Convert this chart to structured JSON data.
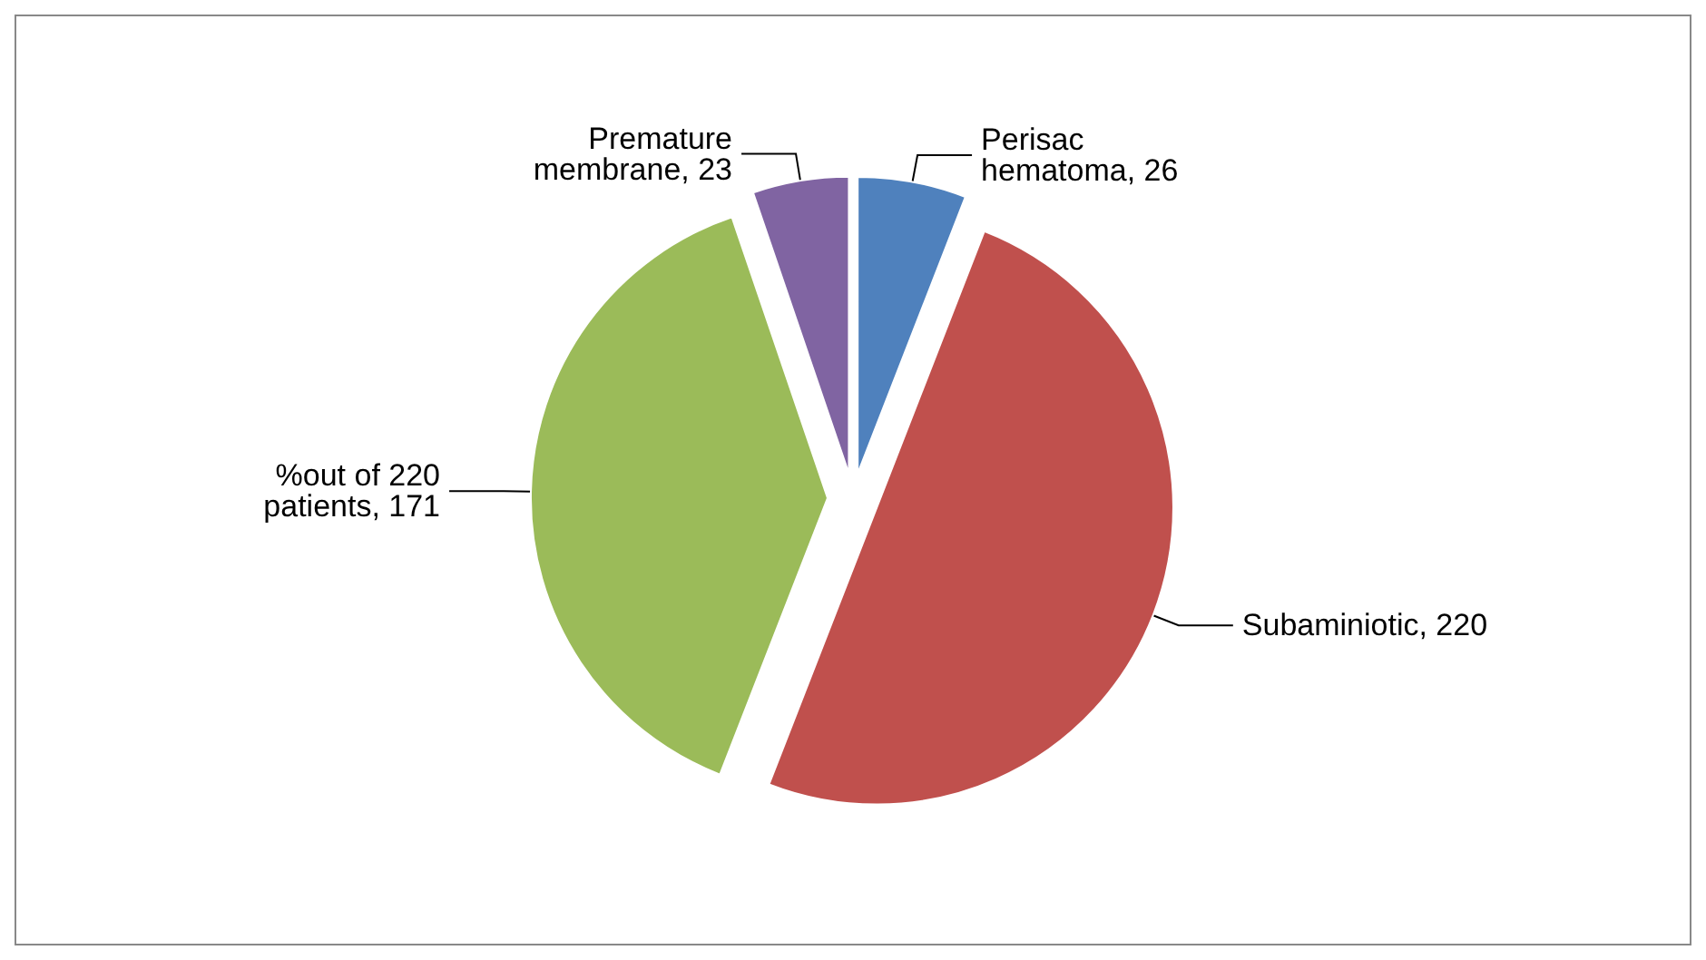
{
  "chart_data": {
    "type": "pie",
    "categories": [
      "Perisac hematoma",
      "Subaminiotic",
      "%out of 220 patients",
      "Premature membrane"
    ],
    "values": [
      26,
      220,
      171,
      23
    ],
    "value_labels": [
      "26",
      "220",
      "171",
      "23"
    ],
    "colors": [
      "#4f81bd",
      "#c0504d",
      "#9bbb59",
      "#8064a2"
    ],
    "legend": false
  }
}
